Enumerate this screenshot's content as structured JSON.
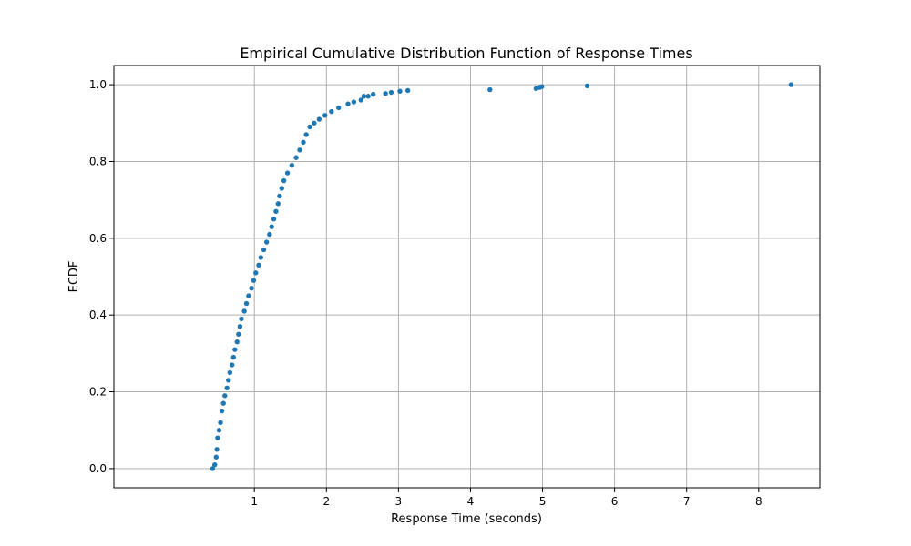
{
  "chart_data": {
    "type": "scatter",
    "title": "Empirical Cumulative Distribution Function of Response Times",
    "xlabel": "Response Time (seconds)",
    "ylabel": "ECDF",
    "xlim": [
      -0.95,
      8.85
    ],
    "ylim": [
      -0.05,
      1.05
    ],
    "xticks": [
      1,
      2,
      3,
      4,
      5,
      6,
      7,
      8
    ],
    "xtick_labels": [
      "1",
      "2",
      "3",
      "4",
      "5",
      "6",
      "7",
      "8"
    ],
    "yticks": [
      0.0,
      0.2,
      0.4,
      0.6,
      0.8,
      1.0
    ],
    "ytick_labels": [
      "0.0",
      "0.2",
      "0.4",
      "0.6",
      "0.8",
      "1.0"
    ],
    "grid": true,
    "marker_color": "#1f77b4",
    "points": [
      [
        0.42,
        0.0
      ],
      [
        0.45,
        0.01
      ],
      [
        0.47,
        0.03
      ],
      [
        0.48,
        0.05
      ],
      [
        0.49,
        0.08
      ],
      [
        0.51,
        0.1
      ],
      [
        0.53,
        0.12
      ],
      [
        0.55,
        0.15
      ],
      [
        0.57,
        0.17
      ],
      [
        0.59,
        0.19
      ],
      [
        0.62,
        0.21
      ],
      [
        0.64,
        0.23
      ],
      [
        0.66,
        0.25
      ],
      [
        0.69,
        0.27
      ],
      [
        0.71,
        0.29
      ],
      [
        0.73,
        0.31
      ],
      [
        0.76,
        0.33
      ],
      [
        0.78,
        0.35
      ],
      [
        0.8,
        0.37
      ],
      [
        0.82,
        0.39
      ],
      [
        0.86,
        0.41
      ],
      [
        0.89,
        0.43
      ],
      [
        0.92,
        0.45
      ],
      [
        0.96,
        0.47
      ],
      [
        0.99,
        0.49
      ],
      [
        1.02,
        0.51
      ],
      [
        1.06,
        0.53
      ],
      [
        1.09,
        0.55
      ],
      [
        1.13,
        0.57
      ],
      [
        1.17,
        0.59
      ],
      [
        1.21,
        0.61
      ],
      [
        1.24,
        0.63
      ],
      [
        1.27,
        0.65
      ],
      [
        1.3,
        0.67
      ],
      [
        1.33,
        0.69
      ],
      [
        1.35,
        0.71
      ],
      [
        1.38,
        0.73
      ],
      [
        1.41,
        0.75
      ],
      [
        1.46,
        0.77
      ],
      [
        1.52,
        0.79
      ],
      [
        1.58,
        0.81
      ],
      [
        1.63,
        0.83
      ],
      [
        1.68,
        0.85
      ],
      [
        1.72,
        0.87
      ],
      [
        1.77,
        0.89
      ],
      [
        1.83,
        0.9
      ],
      [
        1.9,
        0.91
      ],
      [
        1.98,
        0.92
      ],
      [
        2.07,
        0.93
      ],
      [
        2.17,
        0.94
      ],
      [
        2.3,
        0.95
      ],
      [
        2.38,
        0.955
      ],
      [
        2.48,
        0.96
      ],
      [
        2.52,
        0.97
      ],
      [
        2.58,
        0.97
      ],
      [
        2.65,
        0.975
      ],
      [
        2.82,
        0.977
      ],
      [
        2.9,
        0.98
      ],
      [
        3.02,
        0.983
      ],
      [
        3.13,
        0.985
      ],
      [
        4.27,
        0.987
      ],
      [
        4.91,
        0.99
      ],
      [
        4.96,
        0.993
      ],
      [
        4.99,
        0.995
      ],
      [
        5.62,
        0.997
      ],
      [
        8.45,
        1.0
      ]
    ]
  }
}
